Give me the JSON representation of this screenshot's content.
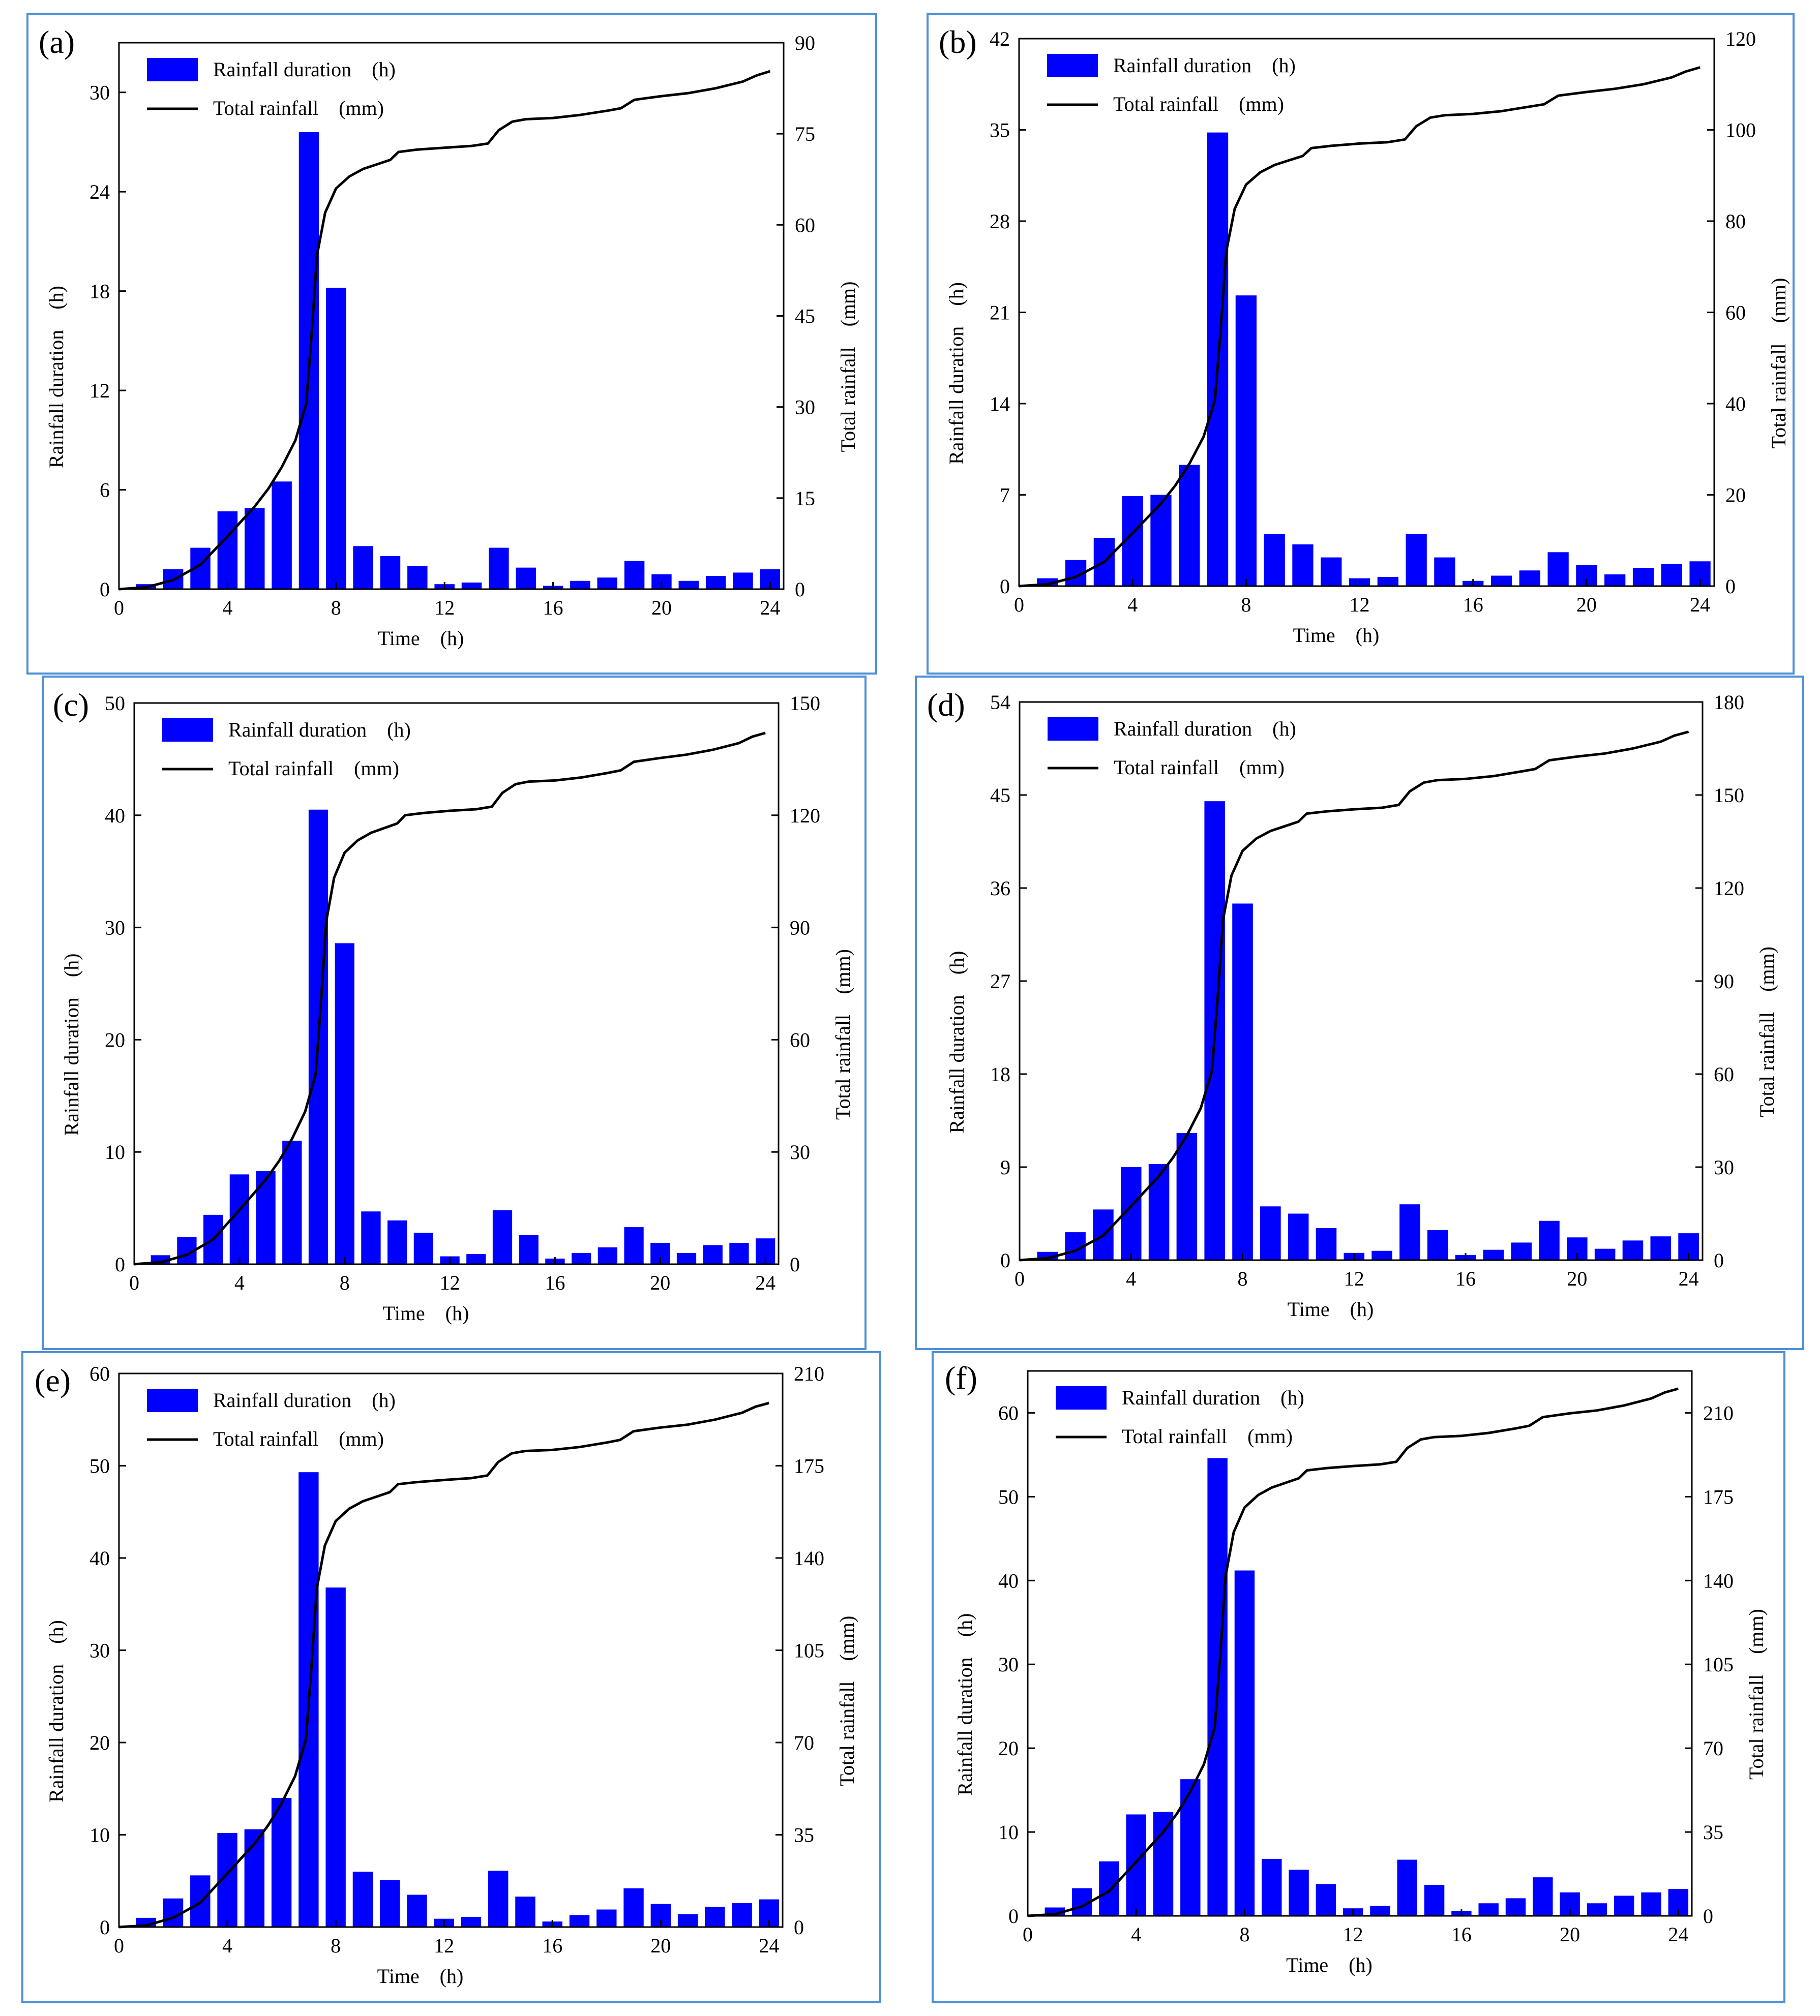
{
  "colors": {
    "bar": "#0000ff",
    "line": "#000000",
    "frame": "#4f8fd6",
    "background": "#ffffff"
  },
  "chart_data": [
    {
      "type": "bar",
      "label": "(a)",
      "legend": {
        "bar": "Rainfall duration　(h)",
        "line": "Total rainfall　(mm)",
        "placement": "top-left"
      },
      "xlabel": "Time　(h)",
      "ylabel": "Rainfall duration　(h)",
      "y2label": "Total rainfall　(mm)",
      "xlim": [
        0,
        24.5
      ],
      "xticks": [
        0,
        4,
        8,
        12,
        16,
        20,
        24
      ],
      "ylim": [
        0,
        33
      ],
      "yticks": [
        0,
        6,
        12,
        18,
        24,
        30
      ],
      "y2lim": [
        0,
        90
      ],
      "y2ticks": [
        0,
        15,
        30,
        45,
        60,
        75,
        90
      ],
      "categories": [
        1,
        2,
        3,
        4,
        5,
        6,
        7,
        8,
        9,
        10,
        11,
        12,
        13,
        14,
        15,
        16,
        17,
        18,
        19,
        20,
        21,
        22,
        23,
        24
      ],
      "values": [
        0.3,
        1.2,
        2.5,
        4.7,
        4.9,
        6.5,
        27.6,
        18.2,
        2.6,
        2.0,
        1.4,
        0.3,
        0.4,
        2.5,
        1.3,
        0.2,
        0.5,
        0.7,
        1.7,
        0.9,
        0.5,
        0.8,
        1.0,
        1.2
      ],
      "line_points": [
        [
          0,
          0
        ],
        [
          1,
          0.3
        ],
        [
          2,
          1.5
        ],
        [
          3,
          4
        ],
        [
          4,
          8.7
        ],
        [
          5,
          13.6
        ],
        [
          5.5,
          16.5
        ],
        [
          6,
          20.1
        ],
        [
          6.5,
          24.5
        ],
        [
          6.9,
          30.5
        ],
        [
          7.1,
          42
        ],
        [
          7.3,
          55
        ],
        [
          7.6,
          62
        ],
        [
          8,
          66
        ],
        [
          8.5,
          68
        ],
        [
          9,
          69.2
        ],
        [
          10,
          70.7
        ],
        [
          10.3,
          72
        ],
        [
          11,
          72.4
        ],
        [
          12,
          72.7
        ],
        [
          13,
          73.0
        ],
        [
          13.6,
          73.4
        ],
        [
          14,
          75.6
        ],
        [
          14.5,
          77
        ],
        [
          15,
          77.4
        ],
        [
          16,
          77.6
        ],
        [
          17,
          78.1
        ],
        [
          18,
          78.8
        ],
        [
          18.5,
          79.2
        ],
        [
          19,
          80.6
        ],
        [
          20,
          81.2
        ],
        [
          21,
          81.7
        ],
        [
          22,
          82.5
        ],
        [
          23,
          83.6
        ],
        [
          23.5,
          84.6
        ],
        [
          24,
          85.3
        ]
      ]
    },
    {
      "type": "bar",
      "label": "(b)",
      "legend": {
        "bar": "Rainfall duration　(h)",
        "line": "Total rainfall　(mm)",
        "placement": "top-left"
      },
      "xlabel": "Time　(h)",
      "ylabel": "Rainfall duration　(h)",
      "y2label": "Total rainfall　(mm)",
      "xlim": [
        0,
        24.5
      ],
      "xticks": [
        0,
        4,
        8,
        12,
        16,
        20,
        24
      ],
      "ylim": [
        0,
        42
      ],
      "yticks": [
        0,
        7,
        14,
        21,
        28,
        35,
        42
      ],
      "y2lim": [
        0,
        120
      ],
      "y2ticks": [
        0,
        20,
        40,
        60,
        80,
        100,
        120
      ],
      "categories": [
        1,
        2,
        3,
        4,
        5,
        6,
        7,
        8,
        9,
        10,
        11,
        12,
        13,
        14,
        15,
        16,
        17,
        18,
        19,
        20,
        21,
        22,
        23,
        24
      ],
      "values": [
        0.6,
        2.0,
        3.7,
        6.9,
        7.0,
        9.3,
        34.8,
        22.3,
        4.0,
        3.2,
        2.2,
        0.6,
        0.7,
        4.0,
        2.2,
        0.4,
        0.8,
        1.2,
        2.6,
        1.6,
        0.9,
        1.4,
        1.7,
        1.9
      ],
      "line_points": [
        [
          0,
          0
        ],
        [
          1,
          0.4
        ],
        [
          2,
          2
        ],
        [
          3,
          5.3
        ],
        [
          4,
          11.6
        ],
        [
          5,
          18.1
        ],
        [
          5.5,
          22
        ],
        [
          6,
          26.8
        ],
        [
          6.5,
          32.7
        ],
        [
          6.9,
          40.7
        ],
        [
          7.1,
          56
        ],
        [
          7.3,
          73.3
        ],
        [
          7.6,
          82.7
        ],
        [
          8,
          88
        ],
        [
          8.5,
          90.7
        ],
        [
          9,
          92.3
        ],
        [
          10,
          94.3
        ],
        [
          10.3,
          96
        ],
        [
          11,
          96.5
        ],
        [
          12,
          97
        ],
        [
          13,
          97.3
        ],
        [
          13.6,
          97.9
        ],
        [
          14,
          100.8
        ],
        [
          14.5,
          102.7
        ],
        [
          15,
          103.2
        ],
        [
          16,
          103.5
        ],
        [
          17,
          104.1
        ],
        [
          18,
          105.1
        ],
        [
          18.5,
          105.6
        ],
        [
          19,
          107.5
        ],
        [
          20,
          108.3
        ],
        [
          21,
          109
        ],
        [
          22,
          110
        ],
        [
          23,
          111.5
        ],
        [
          23.5,
          112.8
        ],
        [
          24,
          113.7
        ]
      ]
    },
    {
      "type": "bar",
      "label": "(c)",
      "legend": {
        "bar": "Rainfall duration　(h)",
        "line": "Total rainfall　(mm)",
        "placement": "top-left"
      },
      "xlabel": "Time　(h)",
      "ylabel": "Rainfall duration　(h)",
      "y2label": "Total rainfall　(mm)",
      "xlim": [
        0,
        24.5
      ],
      "xticks": [
        0,
        4,
        8,
        12,
        16,
        20,
        24
      ],
      "ylim": [
        0,
        50
      ],
      "yticks": [
        0,
        10,
        20,
        30,
        40,
        50
      ],
      "y2lim": [
        0,
        150
      ],
      "y2ticks": [
        0,
        30,
        60,
        90,
        120,
        150
      ],
      "categories": [
        1,
        2,
        3,
        4,
        5,
        6,
        7,
        8,
        9,
        10,
        11,
        12,
        13,
        14,
        15,
        16,
        17,
        18,
        19,
        20,
        21,
        22,
        23,
        24
      ],
      "values": [
        0.8,
        2.4,
        4.4,
        8.0,
        8.3,
        11.0,
        40.5,
        28.6,
        4.7,
        3.9,
        2.8,
        0.7,
        0.9,
        4.8,
        2.6,
        0.5,
        1.0,
        1.5,
        3.3,
        1.9,
        1.0,
        1.7,
        1.9,
        2.3
      ],
      "line_points": [
        [
          0,
          0
        ],
        [
          1,
          0.5
        ],
        [
          2,
          2.5
        ],
        [
          3,
          6.6
        ],
        [
          4,
          14.5
        ],
        [
          5,
          22.6
        ],
        [
          5.5,
          27.5
        ],
        [
          6,
          33.5
        ],
        [
          6.5,
          40.8
        ],
        [
          6.9,
          50.8
        ],
        [
          7.1,
          70
        ],
        [
          7.3,
          91.6
        ],
        [
          7.6,
          103.3
        ],
        [
          8,
          110
        ],
        [
          8.5,
          113.3
        ],
        [
          9,
          115.3
        ],
        [
          10,
          117.8
        ],
        [
          10.3,
          120
        ],
        [
          11,
          120.6
        ],
        [
          12,
          121.2
        ],
        [
          13,
          121.6
        ],
        [
          13.6,
          122.3
        ],
        [
          14,
          126
        ],
        [
          14.5,
          128.3
        ],
        [
          15,
          129
        ],
        [
          16,
          129.3
        ],
        [
          17,
          130.1
        ],
        [
          18,
          131.3
        ],
        [
          18.5,
          132
        ],
        [
          19,
          134.3
        ],
        [
          20,
          135.3
        ],
        [
          21,
          136.2
        ],
        [
          22,
          137.5
        ],
        [
          23,
          139.3
        ],
        [
          23.5,
          141
        ],
        [
          24,
          142
        ]
      ]
    },
    {
      "type": "bar",
      "label": "(d)",
      "legend": {
        "bar": "Rainfall duration　(h)",
        "line": "Total rainfall　(mm)",
        "placement": "top-left"
      },
      "xlabel": "Time　(h)",
      "ylabel": "Rainfall duration　(h)",
      "y2label": "Total rainfall　(mm)",
      "xlim": [
        0,
        24.5
      ],
      "xticks": [
        0,
        4,
        8,
        12,
        16,
        20,
        24
      ],
      "ylim": [
        0,
        54
      ],
      "yticks": [
        0,
        9,
        18,
        27,
        36,
        45,
        54
      ],
      "y2lim": [
        0,
        180
      ],
      "y2ticks": [
        0,
        30,
        60,
        90,
        120,
        150,
        180
      ],
      "categories": [
        1,
        2,
        3,
        4,
        5,
        6,
        7,
        8,
        9,
        10,
        11,
        12,
        13,
        14,
        15,
        16,
        17,
        18,
        19,
        20,
        21,
        22,
        23,
        24
      ],
      "values": [
        0.8,
        2.7,
        4.9,
        9.0,
        9.3,
        12.3,
        44.4,
        34.5,
        5.2,
        4.5,
        3.1,
        0.7,
        0.9,
        5.4,
        2.9,
        0.5,
        1.0,
        1.7,
        3.8,
        2.2,
        1.1,
        1.9,
        2.3,
        2.6
      ],
      "line_points": [
        [
          0,
          0
        ],
        [
          1,
          0.6
        ],
        [
          2,
          3
        ],
        [
          3,
          7.9
        ],
        [
          4,
          17.4
        ],
        [
          5,
          27.1
        ],
        [
          5.5,
          33
        ],
        [
          6,
          40.2
        ],
        [
          6.5,
          49
        ],
        [
          6.9,
          61
        ],
        [
          7.1,
          84
        ],
        [
          7.3,
          109.9
        ],
        [
          7.6,
          124
        ],
        [
          8,
          132
        ],
        [
          8.5,
          136
        ],
        [
          9,
          138.4
        ],
        [
          10,
          141.4
        ],
        [
          10.3,
          144
        ],
        [
          11,
          144.7
        ],
        [
          12,
          145.4
        ],
        [
          13,
          145.9
        ],
        [
          13.6,
          146.8
        ],
        [
          14,
          151.2
        ],
        [
          14.5,
          154
        ],
        [
          15,
          154.8
        ],
        [
          16,
          155.2
        ],
        [
          17,
          156.1
        ],
        [
          18,
          157.6
        ],
        [
          18.5,
          158.4
        ],
        [
          19,
          161.2
        ],
        [
          20,
          162.4
        ],
        [
          21,
          163.4
        ],
        [
          22,
          165
        ],
        [
          23,
          167.2
        ],
        [
          23.5,
          169.2
        ],
        [
          24,
          170.4
        ]
      ]
    },
    {
      "type": "bar",
      "label": "(e)",
      "legend": {
        "bar": "Rainfall duration　(h)",
        "line": "Total rainfall　(mm)",
        "placement": "top-left"
      },
      "xlabel": "Time　(h)",
      "ylabel": "Rainfall duration　(h)",
      "y2label": "Total rainfall　(mm)",
      "xlim": [
        0,
        24.5
      ],
      "xticks": [
        0,
        4,
        8,
        12,
        16,
        20,
        24
      ],
      "ylim": [
        0,
        60
      ],
      "yticks": [
        0,
        10,
        20,
        30,
        40,
        50,
        60
      ],
      "y2lim": [
        0,
        210
      ],
      "y2ticks": [
        0,
        35,
        70,
        105,
        140,
        175,
        210
      ],
      "categories": [
        1,
        2,
        3,
        4,
        5,
        6,
        7,
        8,
        9,
        10,
        11,
        12,
        13,
        14,
        15,
        16,
        17,
        18,
        19,
        20,
        21,
        22,
        23,
        24
      ],
      "values": [
        1.0,
        3.1,
        5.6,
        10.2,
        10.6,
        14.0,
        49.3,
        36.8,
        6.0,
        5.1,
        3.5,
        0.9,
        1.1,
        6.1,
        3.3,
        0.6,
        1.3,
        1.9,
        4.2,
        2.5,
        1.4,
        2.2,
        2.6,
        3.0
      ],
      "line_points": [
        [
          0,
          0
        ],
        [
          1,
          0.6
        ],
        [
          2,
          3.5
        ],
        [
          3,
          9.2
        ],
        [
          4,
          20.3
        ],
        [
          5,
          31.6
        ],
        [
          5.5,
          38.5
        ],
        [
          6,
          46.9
        ],
        [
          6.5,
          57.2
        ],
        [
          6.9,
          71.2
        ],
        [
          7.1,
          98
        ],
        [
          7.3,
          128.2
        ],
        [
          7.6,
          144.7
        ],
        [
          8,
          154
        ],
        [
          8.5,
          158.7
        ],
        [
          9,
          161.5
        ],
        [
          10,
          165
        ],
        [
          10.3,
          168
        ],
        [
          11,
          168.8
        ],
        [
          12,
          169.6
        ],
        [
          13,
          170.3
        ],
        [
          13.6,
          171.3
        ],
        [
          14,
          176.4
        ],
        [
          14.5,
          179.7
        ],
        [
          15,
          180.6
        ],
        [
          16,
          181
        ],
        [
          17,
          182.1
        ],
        [
          18,
          183.8
        ],
        [
          18.5,
          184.8
        ],
        [
          19,
          188.1
        ],
        [
          20,
          189.5
        ],
        [
          21,
          190.6
        ],
        [
          22,
          192.5
        ],
        [
          23,
          195.1
        ],
        [
          23.5,
          197.4
        ],
        [
          24,
          198.8
        ]
      ]
    },
    {
      "type": "bar",
      "label": "(f)",
      "legend": {
        "bar": "Rainfall duration　(h)",
        "line": "Total rainfall　(mm)",
        "placement": "top-left"
      },
      "xlabel": "Time　(h)",
      "ylabel": "Rainfall duration　(h)",
      "y2label": "Total rainfall　(mm)",
      "xlim": [
        0,
        24.5
      ],
      "xticks": [
        0,
        4,
        8,
        12,
        16,
        20,
        24
      ],
      "ylim": [
        0,
        65
      ],
      "yticks": [
        0,
        10,
        20,
        30,
        40,
        50,
        60
      ],
      "y2lim": [
        0,
        227.5
      ],
      "y2ticks": [
        0,
        35,
        70,
        105,
        140,
        175,
        210
      ],
      "categories": [
        1,
        2,
        3,
        4,
        5,
        6,
        7,
        8,
        9,
        10,
        11,
        12,
        13,
        14,
        15,
        16,
        17,
        18,
        19,
        20,
        21,
        22,
        23,
        24
      ],
      "values": [
        1.0,
        3.3,
        6.5,
        12.1,
        12.4,
        16.3,
        54.6,
        41.2,
        6.8,
        5.5,
        3.8,
        0.9,
        1.2,
        6.7,
        3.7,
        0.6,
        1.5,
        2.1,
        4.6,
        2.8,
        1.5,
        2.4,
        2.8,
        3.2
      ],
      "line_points": [
        [
          0,
          0
        ],
        [
          1,
          0.7
        ],
        [
          2,
          3.9
        ],
        [
          3,
          10.3
        ],
        [
          4,
          22.5
        ],
        [
          5,
          35
        ],
        [
          5.5,
          42.6
        ],
        [
          6,
          51.9
        ],
        [
          6.5,
          63.3
        ],
        [
          6.9,
          78.8
        ],
        [
          7.1,
          108.5
        ],
        [
          7.3,
          141.9
        ],
        [
          7.6,
          160.2
        ],
        [
          8,
          170.5
        ],
        [
          8.5,
          175.7
        ],
        [
          9,
          178.8
        ],
        [
          10,
          182.7
        ],
        [
          10.3,
          186
        ],
        [
          11,
          186.9
        ],
        [
          12,
          187.8
        ],
        [
          13,
          188.5
        ],
        [
          13.6,
          189.6
        ],
        [
          14,
          195.3
        ],
        [
          14.5,
          198.9
        ],
        [
          15,
          199.9
        ],
        [
          16,
          200.4
        ],
        [
          17,
          201.6
        ],
        [
          18,
          203.5
        ],
        [
          18.5,
          204.6
        ],
        [
          19,
          208.2
        ],
        [
          20,
          209.8
        ],
        [
          21,
          211
        ],
        [
          22,
          213.1
        ],
        [
          23,
          216
        ],
        [
          23.5,
          218.5
        ],
        [
          24,
          220.1
        ]
      ]
    }
  ]
}
